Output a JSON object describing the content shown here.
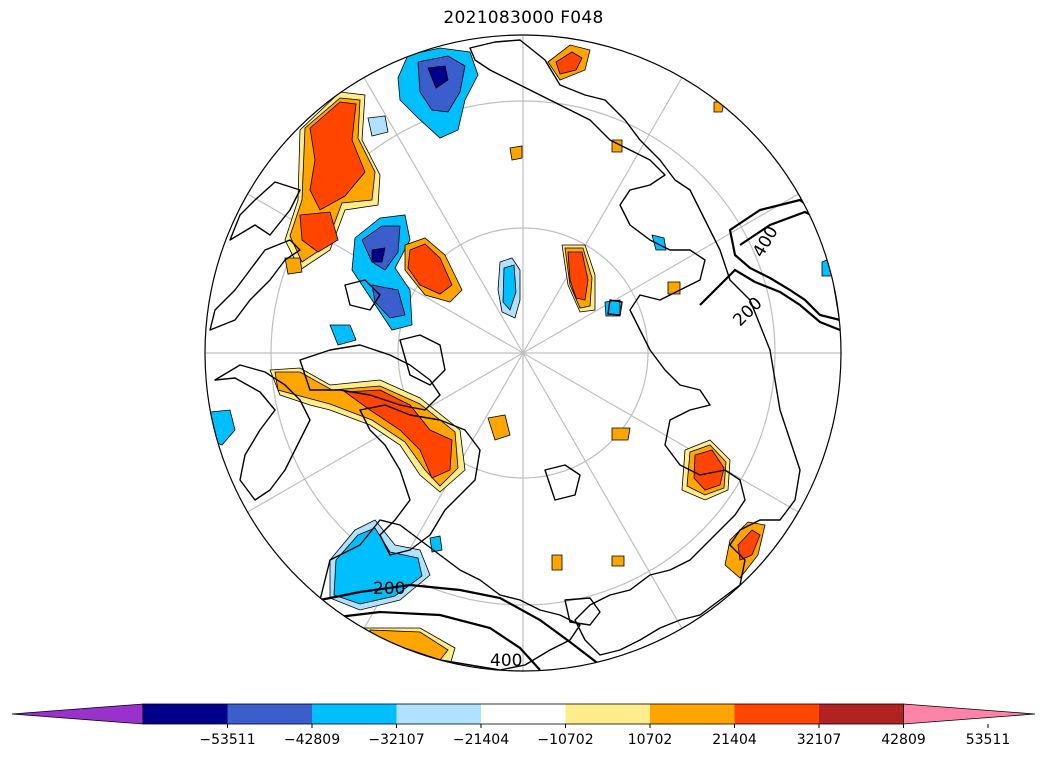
{
  "title": "2021083000 F048",
  "colorbar": {
    "colors": [
      "#9932cc",
      "#00008b",
      "#3a5fcd",
      "#00bfff",
      "#b0e2ff",
      "#ffffff",
      "#ffec8b",
      "#ffa500",
      "#ff4500",
      "#b22222",
      "#ff83a8"
    ],
    "tick_labels": [
      "−53511",
      "−42809",
      "−32107",
      "−21404",
      "−10702",
      "10702",
      "21404",
      "32107",
      "42809",
      "53511"
    ],
    "extend": "both"
  },
  "contour_labels": [
    "400",
    "200",
    "200",
    "400"
  ],
  "projection": "north-polar-stereographic",
  "graticule_color": "#bfbfbf"
}
